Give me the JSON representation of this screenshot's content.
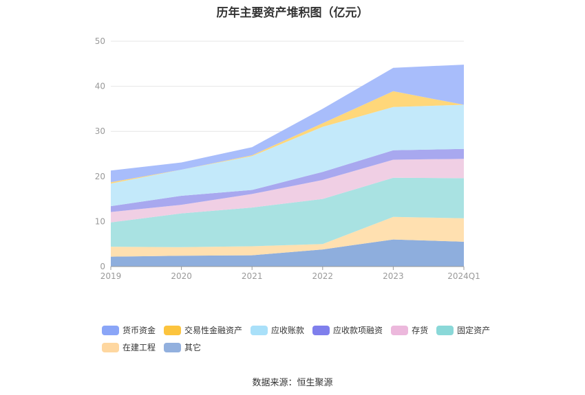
{
  "title": "历年主要资产堆积图（亿元）",
  "source": "数据来源：恒生聚源",
  "chart_data": {
    "type": "area",
    "stacked": true,
    "x": [
      "2019",
      "2020",
      "2021",
      "2022",
      "2023",
      "2024Q1"
    ],
    "ylim": [
      0,
      50
    ],
    "yticks": [
      0,
      10,
      20,
      30,
      40,
      50
    ],
    "grid": true,
    "legend_position": "bottom",
    "series": [
      {
        "name": "其它",
        "values": [
          2.2,
          2.4,
          2.5,
          3.8,
          6.0,
          5.5
        ],
        "color": "#8eaedd",
        "legend_color": "#92b0de"
      },
      {
        "name": "在建工程",
        "values": [
          2.2,
          1.9,
          2.0,
          1.2,
          5.0,
          5.2
        ],
        "color": "#ffe0b0",
        "legend_color": "#fed7a0"
      },
      {
        "name": "固定资产",
        "values": [
          5.4,
          7.5,
          8.6,
          10.0,
          8.7,
          8.9
        ],
        "color": "#a9e2e2",
        "legend_color": "#8ad8d8"
      },
      {
        "name": "存货",
        "values": [
          2.3,
          1.9,
          3.0,
          4.2,
          4.0,
          4.3
        ],
        "color": "#f0cfe4",
        "legend_color": "#ecb8dc"
      },
      {
        "name": "应收款项融资",
        "values": [
          1.3,
          2.0,
          0.9,
          1.8,
          2.1,
          2.2
        ],
        "color": "#a8a8ef",
        "legend_color": "#7f7fec"
      },
      {
        "name": "应收账款",
        "values": [
          5.0,
          5.8,
          7.5,
          10.0,
          9.6,
          9.8
        ],
        "color": "#c3e9fa",
        "legend_color": "#a9e0f9"
      },
      {
        "name": "交易性金融资产",
        "values": [
          0.3,
          0.0,
          0.2,
          0.8,
          3.5,
          0.0
        ],
        "color": "#ffd77a",
        "legend_color": "#fcc43e"
      },
      {
        "name": "货币资金",
        "values": [
          2.6,
          1.6,
          1.8,
          3.2,
          5.2,
          8.9
        ],
        "color": "#a8bdfb",
        "legend_color": "#8aa5f7"
      }
    ]
  }
}
